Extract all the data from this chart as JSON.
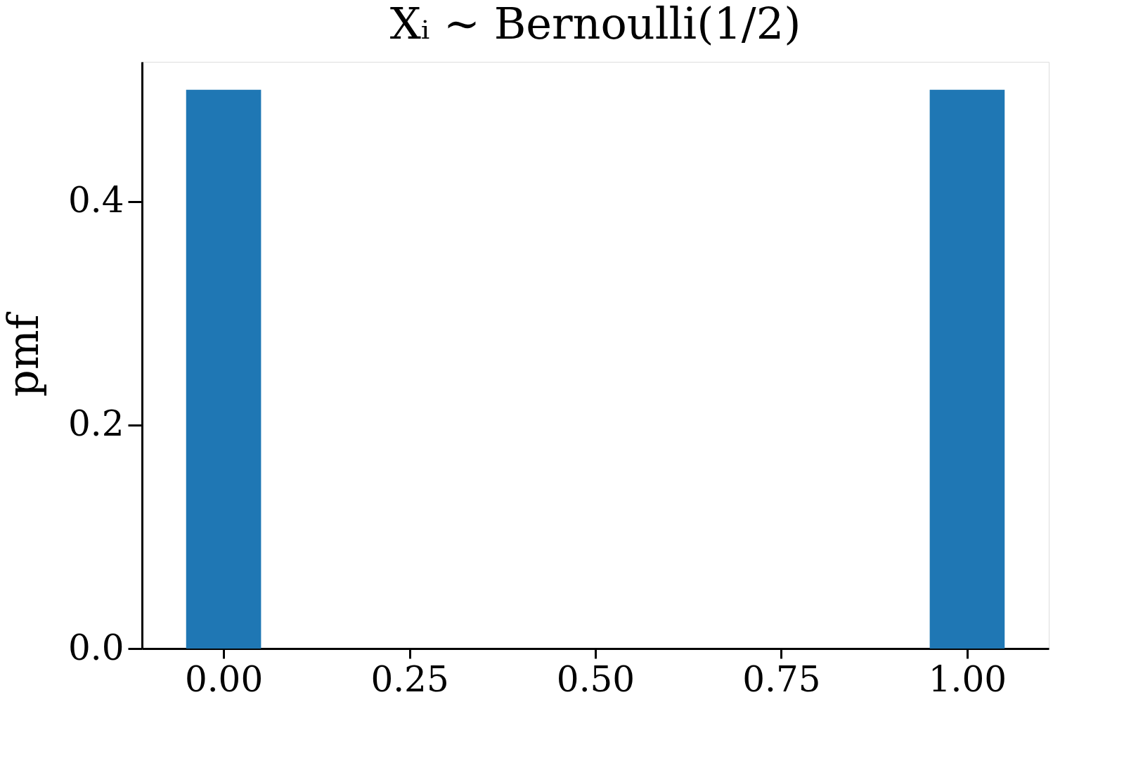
{
  "chart_data": {
    "type": "bar",
    "title": "Xᵢ ∼ Bernoulli(1/2)",
    "ylabel": "pmf",
    "x": [
      0,
      1
    ],
    "values": [
      0.5,
      0.5
    ],
    "color": "#1f77b4",
    "xlim": [
      -0.105,
      1.105
    ],
    "xticks": [
      {
        "value": 0,
        "label": "0.00"
      },
      {
        "value": 0.25,
        "label": "0.25"
      },
      {
        "value": 0.5,
        "label": "0.50"
      },
      {
        "value": 0.75,
        "label": "0.75"
      },
      {
        "value": 1,
        "label": "1.00"
      }
    ],
    "ylim": [
      0,
      0.525
    ],
    "yticks": [
      {
        "value": 0,
        "label": "0.0"
      },
      {
        "value": 0.2,
        "label": "0.2"
      },
      {
        "value": 0.4,
        "label": "0.4"
      }
    ],
    "grid": false
  }
}
